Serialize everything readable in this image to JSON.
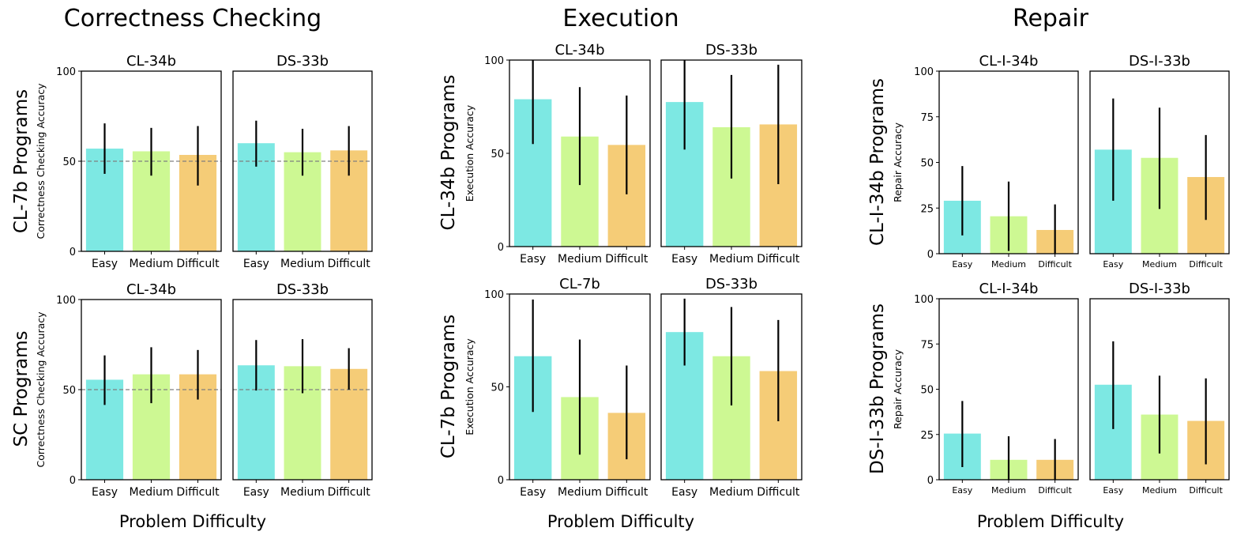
{
  "colors": {
    "easy": "#7de8e3",
    "medium": "#cdf893",
    "difficult": "#f5cc77",
    "error_bar": "#000000",
    "reference_line": "#808080",
    "frame": "#000000"
  },
  "sections": [
    {
      "title": "Correctness Checking",
      "xlabel": "Problem Difficulty"
    },
    {
      "title": "Execution",
      "xlabel": "Problem Difficulty"
    },
    {
      "title": "Repair",
      "xlabel": "Problem Difficulty"
    }
  ],
  "chart_data": [
    {
      "type": "bar",
      "section": "Correctness Checking",
      "row_label": "CL-7b Programs",
      "title": "CL-34b",
      "ylabel": "Correctness Checking Accuracy",
      "ylim": [
        0,
        100
      ],
      "yticks": [
        0,
        50,
        100
      ],
      "reference_line": 50,
      "categories": [
        "Easy",
        "Medium",
        "Difficult"
      ],
      "values": [
        57,
        55.5,
        53.5
      ],
      "error_low": [
        43,
        42,
        36.5
      ],
      "error_high": [
        71,
        68.5,
        69.5
      ]
    },
    {
      "type": "bar",
      "section": "Correctness Checking",
      "row_label": "CL-7b Programs",
      "title": "DS-33b",
      "ylim": [
        0,
        100
      ],
      "reference_line": 50,
      "categories": [
        "Easy",
        "Medium",
        "Difficult"
      ],
      "values": [
        60,
        55,
        56
      ],
      "error_low": [
        47,
        42,
        42
      ],
      "error_high": [
        72.5,
        68,
        69.5
      ]
    },
    {
      "type": "bar",
      "section": "Correctness Checking",
      "row_label": "SC Programs",
      "title": "CL-34b",
      "ylabel": "Correctness Checking Accuracy",
      "ylim": [
        0,
        100
      ],
      "yticks": [
        0,
        50,
        100
      ],
      "reference_line": 50,
      "categories": [
        "Easy",
        "Medium",
        "Difficult"
      ],
      "values": [
        55.5,
        58.5,
        58.5
      ],
      "error_low": [
        41.5,
        42.5,
        44.5
      ],
      "error_high": [
        69,
        73.5,
        72
      ]
    },
    {
      "type": "bar",
      "section": "Correctness Checking",
      "row_label": "SC Programs",
      "title": "DS-33b",
      "ylim": [
        0,
        100
      ],
      "reference_line": 50,
      "categories": [
        "Easy",
        "Medium",
        "Difficult"
      ],
      "values": [
        63.5,
        63,
        61.5
      ],
      "error_low": [
        49.5,
        48,
        50
      ],
      "error_high": [
        77.5,
        78,
        73
      ]
    },
    {
      "type": "bar",
      "section": "Execution",
      "row_label": "CL-34b Programs",
      "title": "CL-34b",
      "ylabel": "Execution Accuracy",
      "ylim": [
        0,
        100
      ],
      "yticks": [
        0,
        50,
        100
      ],
      "categories": [
        "Easy",
        "Medium",
        "Difficult"
      ],
      "values": [
        79,
        59,
        54.5
      ],
      "error_low": [
        55,
        33,
        28
      ],
      "error_high": [
        100,
        85.5,
        81
      ]
    },
    {
      "type": "bar",
      "section": "Execution",
      "row_label": "CL-34b Programs",
      "title": "DS-33b",
      "ylim": [
        0,
        100
      ],
      "categories": [
        "Easy",
        "Medium",
        "Difficult"
      ],
      "values": [
        77.5,
        64,
        65.5
      ],
      "error_low": [
        52,
        36.5,
        33.5
      ],
      "error_high": [
        100,
        92,
        97.5
      ]
    },
    {
      "type": "bar",
      "section": "Execution",
      "row_label": "CL-7b Programs",
      "title": "CL-7b",
      "ylabel": "Execution Accuracy",
      "ylim": [
        0,
        100
      ],
      "yticks": [
        0,
        50,
        100
      ],
      "categories": [
        "Easy",
        "Medium",
        "Difficult"
      ],
      "values": [
        66.5,
        44.5,
        36
      ],
      "error_low": [
        36.5,
        13.5,
        11
      ],
      "error_high": [
        97,
        75.5,
        61.5
      ]
    },
    {
      "type": "bar",
      "section": "Execution",
      "row_label": "CL-7b Programs",
      "title": "DS-33b",
      "ylim": [
        0,
        100
      ],
      "categories": [
        "Easy",
        "Medium",
        "Difficult"
      ],
      "values": [
        79.5,
        66.5,
        58.5
      ],
      "error_low": [
        61.5,
        40,
        31.5
      ],
      "error_high": [
        97.5,
        93,
        86
      ]
    },
    {
      "type": "bar",
      "section": "Repair",
      "row_label": "CL-I-34b Programs",
      "title": "CL-I-34b",
      "ylabel": "Repair Accuracy",
      "ylim": [
        0,
        100
      ],
      "yticks": [
        0,
        25,
        50,
        75,
        100
      ],
      "categories": [
        "Easy",
        "Medium",
        "Difficult"
      ],
      "values": [
        29,
        20.5,
        13
      ],
      "error_low": [
        10,
        1.5,
        0
      ],
      "error_high": [
        48,
        39.5,
        27
      ]
    },
    {
      "type": "bar",
      "section": "Repair",
      "row_label": "CL-I-34b Programs",
      "title": "DS-I-33b",
      "ylim": [
        0,
        100
      ],
      "categories": [
        "Easy",
        "Medium",
        "Difficult"
      ],
      "values": [
        57,
        52.5,
        42
      ],
      "error_low": [
        29,
        24.5,
        18.5
      ],
      "error_high": [
        85,
        80,
        65
      ]
    },
    {
      "type": "bar",
      "section": "Repair",
      "row_label": "DS-I-33b Programs",
      "title": "CL-I-34b",
      "ylabel": "Repair Accuracy",
      "ylim": [
        0,
        100
      ],
      "yticks": [
        0,
        25,
        50,
        75,
        100
      ],
      "categories": [
        "Easy",
        "Medium",
        "Difficult"
      ],
      "values": [
        25.5,
        11,
        11
      ],
      "error_low": [
        7,
        0,
        0
      ],
      "error_high": [
        43.5,
        24,
        22.5
      ]
    },
    {
      "type": "bar",
      "section": "Repair",
      "row_label": "DS-I-33b Programs",
      "title": "DS-I-33b",
      "ylim": [
        0,
        100
      ],
      "categories": [
        "Easy",
        "Medium",
        "Difficult"
      ],
      "values": [
        52.5,
        36,
        32.5
      ],
      "error_low": [
        28,
        14.5,
        8.5
      ],
      "error_high": [
        76.5,
        57.5,
        56
      ]
    }
  ]
}
